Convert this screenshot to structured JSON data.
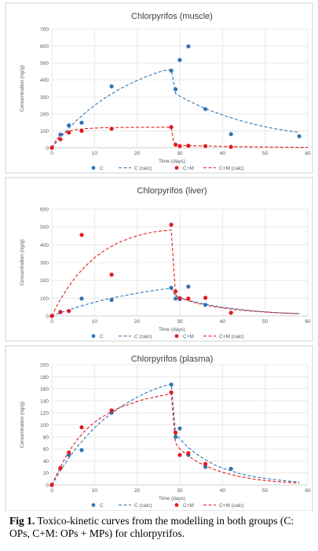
{
  "chart_data": [
    {
      "type": "scatter",
      "title": "Chlorpyrifos (muscle)",
      "xlabel": "Time (days)",
      "ylabel": "Concentration (ng/g)",
      "xlim": [
        0,
        60
      ],
      "ylim": [
        0,
        700
      ],
      "xticks": [
        0,
        10,
        20,
        30,
        40,
        50,
        60
      ],
      "yticks": [
        0,
        100,
        200,
        300,
        400,
        500,
        600,
        700
      ],
      "grid": true,
      "legend": "bottom",
      "series": [
        {
          "name": "C",
          "kind": "points",
          "color": "#2e75b6",
          "x": [
            0,
            2,
            4,
            7,
            14,
            28,
            29,
            30,
            32,
            36,
            42,
            58
          ],
          "y": [
            0,
            78,
            132,
            148,
            362,
            455,
            345,
            518,
            598,
            228,
            80,
            68
          ]
        },
        {
          "name": "C (calc)",
          "kind": "dashed",
          "color": "#2e75b6",
          "x": [
            0,
            2,
            4,
            6,
            8,
            10,
            12,
            14,
            16,
            18,
            20,
            22,
            24,
            26,
            28,
            29,
            30,
            32,
            34,
            36,
            38,
            40,
            42,
            44,
            46,
            48,
            50,
            52,
            54,
            56,
            58
          ],
          "y": [
            0,
            61,
            116,
            166,
            210,
            250,
            286,
            318,
            347,
            373,
            397,
            418,
            437,
            454,
            462,
            320,
            305,
            278,
            254,
            232,
            212,
            194,
            177,
            162,
            148,
            135,
            124,
            114,
            105,
            97,
            90
          ]
        },
        {
          "name": "C+M",
          "kind": "points",
          "color": "#e41a1c",
          "x": [
            0,
            2,
            4,
            7,
            14,
            28,
            29,
            30,
            32,
            36,
            42
          ],
          "y": [
            0,
            50,
            90,
            100,
            112,
            122,
            18,
            10,
            12,
            10,
            5
          ]
        },
        {
          "name": "C+M (calc)",
          "kind": "dashed",
          "color": "#e41a1c",
          "x": [
            0,
            1,
            2,
            3,
            4,
            5,
            6,
            8,
            10,
            12,
            14,
            18,
            22,
            26,
            28,
            28.5,
            29,
            30,
            32,
            34,
            36,
            40,
            44,
            48,
            52,
            56,
            60
          ],
          "y": [
            0,
            45,
            72,
            88,
            98,
            104,
            108,
            113,
            116,
            118,
            119,
            120,
            121,
            121,
            121,
            40,
            18,
            14,
            12,
            11,
            10,
            8,
            6,
            5,
            4,
            3,
            2
          ]
        }
      ]
    },
    {
      "type": "scatter",
      "title": "Chlorpyrifos (liver)",
      "xlabel": "Time (days)",
      "ylabel": "Concentration (ng/g)",
      "xlim": [
        0,
        60
      ],
      "ylim": [
        0,
        600
      ],
      "xticks": [
        0,
        10,
        20,
        30,
        40,
        50,
        60
      ],
      "yticks": [
        0,
        100,
        200,
        300,
        400,
        500,
        600
      ],
      "grid": true,
      "legend": "bottom",
      "series": [
        {
          "name": "C",
          "kind": "points",
          "color": "#2e75b6",
          "x": [
            0,
            2,
            7,
            14,
            28,
            29,
            30,
            32,
            36
          ],
          "y": [
            0,
            22,
            98,
            90,
            158,
            98,
            95,
            165,
            62
          ]
        },
        {
          "name": "C (calc)",
          "kind": "dashed",
          "color": "#2e75b6",
          "x": [
            0,
            2,
            4,
            6,
            8,
            10,
            12,
            14,
            16,
            18,
            20,
            22,
            24,
            26,
            28,
            29,
            30,
            32,
            34,
            36,
            38,
            40,
            44,
            48,
            52,
            56,
            58
          ],
          "y": [
            0,
            18,
            35,
            50,
            64,
            77,
            89,
            100,
            110,
            119,
            128,
            136,
            143,
            150,
            156,
            110,
            102,
            88,
            76,
            66,
            57,
            49,
            37,
            27,
            20,
            15,
            13
          ]
        },
        {
          "name": "C+M",
          "kind": "points",
          "color": "#e41a1c",
          "x": [
            0,
            2,
            4,
            7,
            14,
            28,
            29,
            30,
            32,
            36,
            42
          ],
          "y": [
            0,
            22,
            28,
            455,
            232,
            512,
            138,
            100,
            98,
            102,
            18
          ]
        },
        {
          "name": "C+M (calc)",
          "kind": "dashed",
          "color": "#e41a1c",
          "x": [
            0,
            1,
            2,
            4,
            6,
            8,
            10,
            12,
            14,
            16,
            18,
            20,
            22,
            24,
            26,
            28,
            29,
            30,
            32,
            34,
            36,
            38,
            40,
            44,
            48,
            52,
            56,
            58
          ],
          "y": [
            0,
            48,
            92,
            168,
            231,
            283,
            326,
            362,
            391,
            415,
            434,
            450,
            463,
            472,
            478,
            482,
            120,
            102,
            85,
            72,
            61,
            52,
            45,
            33,
            25,
            19,
            15,
            13
          ]
        }
      ]
    },
    {
      "type": "scatter",
      "title": "Chlorpyrifos (plasma)",
      "xlabel": "Time (days)",
      "ylabel": "Concentration (ng/g)",
      "xlim": [
        0,
        60
      ],
      "ylim": [
        0,
        200
      ],
      "xticks": [
        0,
        10,
        20,
        30,
        40,
        50,
        60
      ],
      "yticks": [
        0,
        20,
        40,
        60,
        80,
        100,
        120,
        140,
        160,
        180,
        200
      ],
      "grid": true,
      "legend": "bottom",
      "series": [
        {
          "name": "C",
          "kind": "points",
          "color": "#2e75b6",
          "x": [
            0,
            2,
            4,
            7,
            14,
            28,
            29,
            30,
            32,
            36,
            42
          ],
          "y": [
            0,
            28,
            50,
            58,
            120,
            167,
            80,
            94,
            50,
            30,
            27
          ]
        },
        {
          "name": "C (calc)",
          "kind": "dashed",
          "color": "#2e75b6",
          "x": [
            0,
            2,
            4,
            6,
            8,
            10,
            12,
            14,
            16,
            18,
            20,
            22,
            24,
            26,
            28,
            29,
            30,
            32,
            34,
            36,
            38,
            40,
            44,
            48,
            52,
            56,
            58
          ],
          "y": [
            0,
            24,
            45,
            64,
            80,
            95,
            108,
            119,
            129,
            138,
            146,
            153,
            159,
            164,
            168,
            85,
            77,
            62,
            51,
            42,
            34,
            28,
            19,
            13,
            9,
            6,
            5
          ]
        },
        {
          "name": "C+M",
          "kind": "points",
          "color": "#e41a1c",
          "x": [
            0,
            2,
            4,
            7,
            14,
            28,
            29,
            30,
            32,
            36
          ],
          "y": [
            0,
            28,
            54,
            96,
            124,
            154,
            87,
            50,
            53,
            35
          ]
        },
        {
          "name": "C+M (calc)",
          "kind": "dashed",
          "color": "#e41a1c",
          "x": [
            0,
            2,
            4,
            6,
            8,
            10,
            12,
            14,
            16,
            18,
            20,
            22,
            24,
            26,
            28,
            29,
            30,
            32,
            34,
            36,
            38,
            40,
            44,
            48,
            52,
            56,
            58
          ],
          "y": [
            0,
            30,
            56,
            76,
            92,
            104,
            114,
            122,
            129,
            134,
            139,
            143,
            146,
            149,
            152,
            70,
            60,
            48,
            39,
            32,
            26,
            21,
            14,
            9,
            6,
            4,
            3
          ]
        }
      ]
    }
  ],
  "caption": {
    "label": "Fig 1.",
    "text": " Toxico-kinetic curves from the modelling in both groups (C: OPs, C+M: OPs + MPs) for chlorpyrifos."
  }
}
